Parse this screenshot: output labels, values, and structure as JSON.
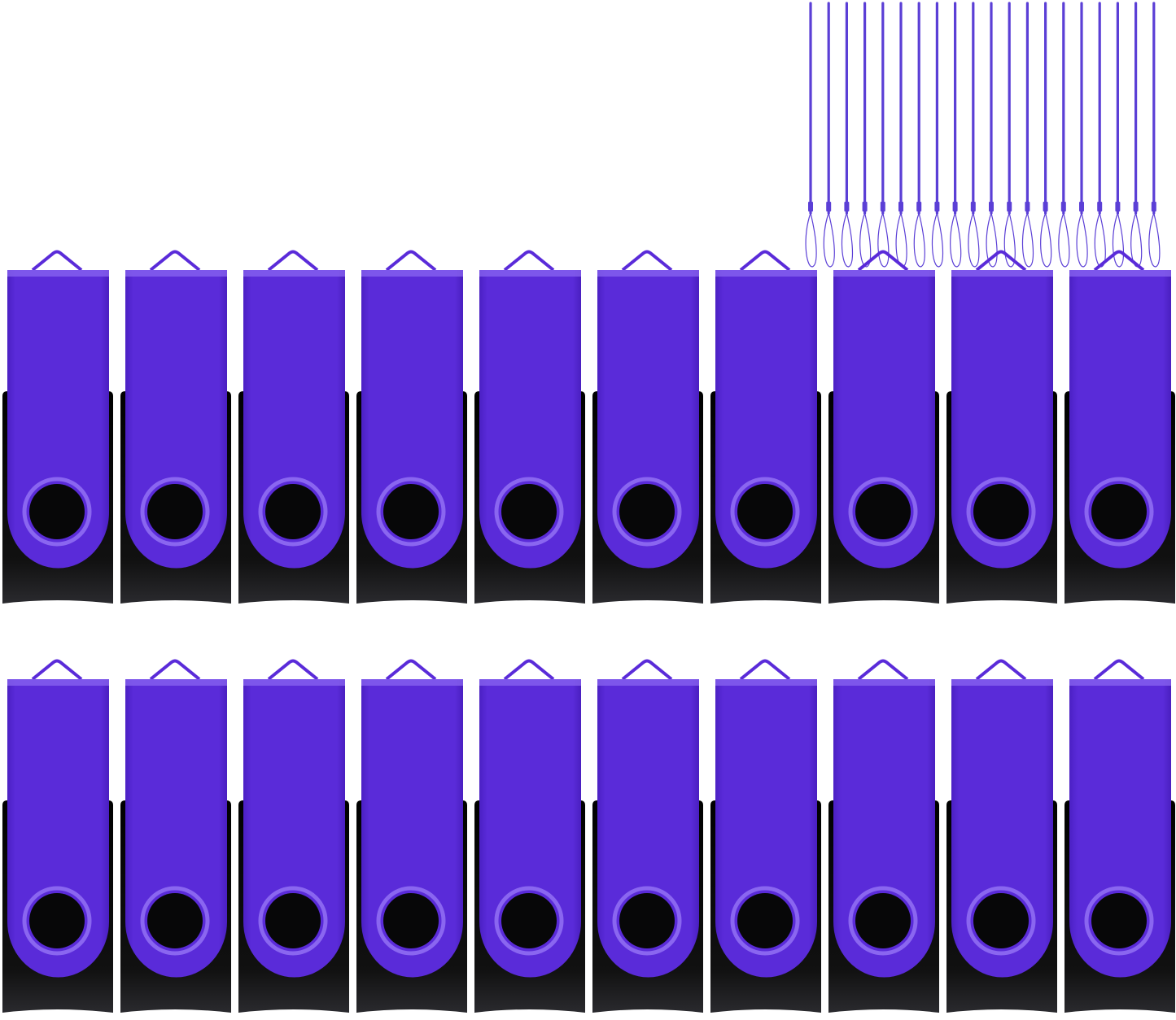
{
  "product": {
    "drive_count": 20,
    "drive_rows": 2,
    "drives_per_row": 10,
    "lanyard_count": 20,
    "colors": {
      "cap": "#5a2bd9",
      "cap_highlight": "#8a66f0",
      "body": "#0b0b0d",
      "lanyard": "#5b3fd6",
      "background": "#ffffff"
    }
  }
}
